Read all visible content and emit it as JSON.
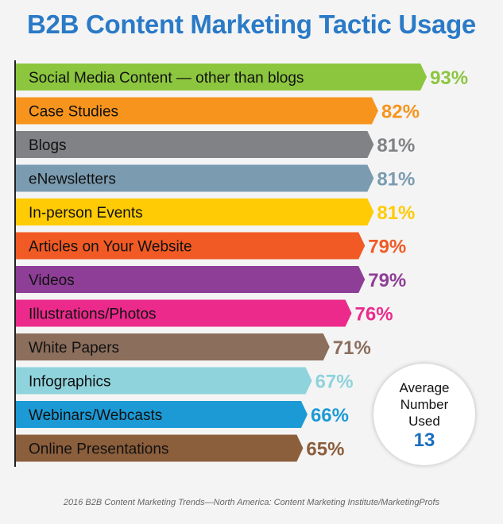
{
  "title": "B2B Content Marketing Tactic Usage",
  "source": "2016 B2B Content Marketing Trends—North America: Content Marketing Institute/MarketingProfs",
  "average": {
    "label_lines": [
      "Average",
      "Number",
      "Used"
    ],
    "value": "13"
  },
  "chart_data": {
    "type": "bar",
    "orientation": "horizontal",
    "title": "B2B Content Marketing Tactic Usage",
    "xlabel": "",
    "ylabel": "",
    "xlim": [
      0,
      100
    ],
    "grid": false,
    "categories": [
      "Social Media Content — other than blogs",
      "Case Studies",
      "Blogs",
      "eNewsletters",
      "In-person Events",
      "Articles on Your Website",
      "Videos",
      "Illustrations/Photos",
      "White Papers",
      "Infographics",
      "Webinars/Webcasts",
      "Online Presentations"
    ],
    "values": [
      93,
      82,
      81,
      81,
      81,
      79,
      79,
      76,
      71,
      67,
      66,
      65
    ],
    "value_labels": [
      "93%",
      "82%",
      "81%",
      "81%",
      "81%",
      "79%",
      "79%",
      "76%",
      "71%",
      "67%",
      "66%",
      "65%"
    ],
    "colors": [
      "#8cc63f",
      "#f7941d",
      "#808285",
      "#7a9bb0",
      "#ffcb05",
      "#f15a24",
      "#8e3e96",
      "#ec2a8c",
      "#8b6e5c",
      "#8fd3dc",
      "#1c9ad6",
      "#8b5e3c"
    ]
  }
}
